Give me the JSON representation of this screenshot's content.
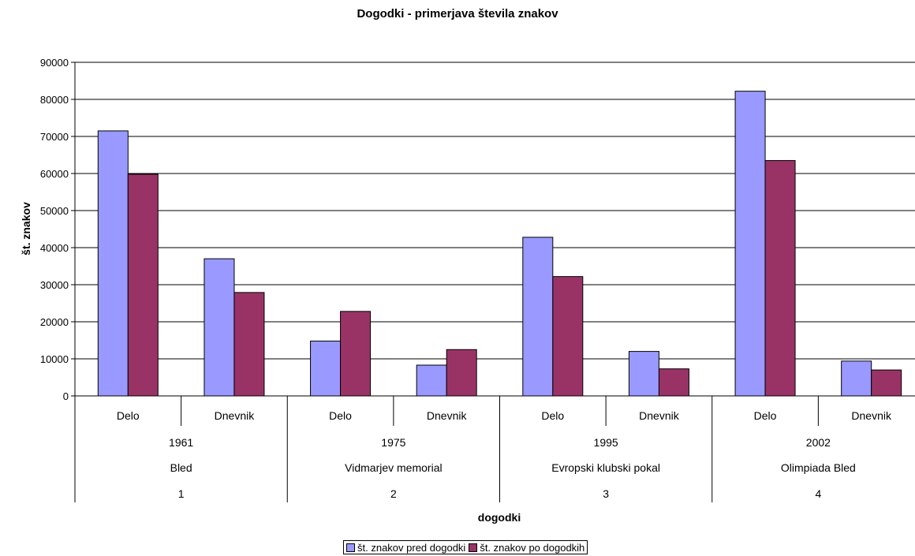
{
  "chart_data": {
    "type": "bar",
    "title": "Dogodki - primerjava števila znakov",
    "xlabel": "dogodki",
    "ylabel": "št. znakov",
    "ylim": [
      0,
      90000
    ],
    "yticks": [
      "0",
      "10000",
      "20000",
      "30000",
      "40000",
      "50000",
      "60000",
      "70000",
      "80000",
      "90000"
    ],
    "grid": true,
    "legend_position": "bottom",
    "categories": [
      "Delo",
      "Dnevnik",
      "Delo",
      "Dnevnik",
      "Delo",
      "Dnevnik",
      "Delo",
      "Dnevnik"
    ],
    "groups": [
      {
        "year": "1961",
        "name": "Bled",
        "number": "1"
      },
      {
        "year": "1975",
        "name": "Vidmarjev memorial",
        "number": "2"
      },
      {
        "year": "1995",
        "name": "Evropski klubski pokal",
        "number": "3"
      },
      {
        "year": "2002",
        "name": "Olimpiada Bled",
        "number": "4"
      }
    ],
    "series": [
      {
        "name": "št. znakov pred dogodki",
        "color": "#9999ff",
        "values": [
          71500,
          37000,
          14800,
          8300,
          42800,
          12000,
          82200,
          9400
        ]
      },
      {
        "name": "št. znakov po dogodkih",
        "color": "#993366",
        "values": [
          59800,
          27900,
          22800,
          12500,
          32200,
          7300,
          63500,
          7000
        ]
      }
    ]
  }
}
